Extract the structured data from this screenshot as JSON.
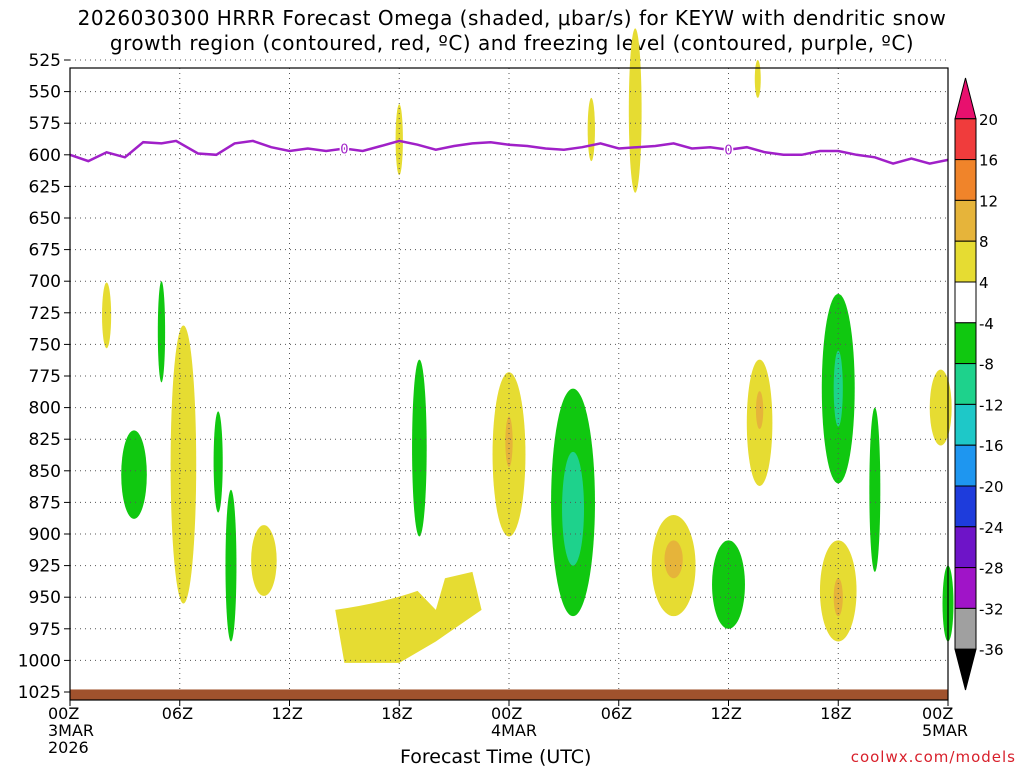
{
  "title": {
    "line1": "2026030300 HRRR Forecast Omega (shaded, μbar/s) for KEYW with dendritic snow",
    "line2": "growth region (contoured, red, ºC) and freezing level (contoured, purple, ºC)"
  },
  "chart_data": {
    "type": "heatmap",
    "x_axis": {
      "label": "Forecast Time (UTC)",
      "range_hours": [
        0,
        48
      ],
      "ticks": [
        {
          "hour": 0,
          "lines": [
            "00Z",
            "3MAR",
            "2026"
          ]
        },
        {
          "hour": 6,
          "lines": [
            "06Z"
          ]
        },
        {
          "hour": 12,
          "lines": [
            "12Z"
          ]
        },
        {
          "hour": 18,
          "lines": [
            "18Z"
          ]
        },
        {
          "hour": 24,
          "lines": [
            "00Z",
            "4MAR"
          ]
        },
        {
          "hour": 30,
          "lines": [
            "06Z"
          ]
        },
        {
          "hour": 36,
          "lines": [
            "12Z"
          ]
        },
        {
          "hour": 42,
          "lines": [
            "18Z"
          ]
        },
        {
          "hour": 48,
          "lines": [
            "00Z",
            "5MAR"
          ]
        }
      ]
    },
    "y_axis": {
      "units": "hPa",
      "range": [
        1025,
        525
      ],
      "ticks": [
        525,
        550,
        575,
        600,
        625,
        650,
        675,
        700,
        725,
        750,
        775,
        800,
        825,
        850,
        875,
        900,
        925,
        950,
        975,
        1000,
        1025
      ]
    },
    "grid": true,
    "colorbar": {
      "labels": [
        "20",
        "16",
        "12",
        "8",
        "4",
        "-4",
        "-8",
        "-12",
        "-16",
        "-20",
        "-24",
        "-28",
        "-32",
        "-36"
      ],
      "colors": [
        "#e8106e",
        "#f03c3c",
        "#f0842a",
        "#e6b43a",
        "#e6dc32",
        "#ffffff",
        "#10c810",
        "#1ed28c",
        "#1ec8c8",
        "#1e96f0",
        "#1e3cdc",
        "#6e14c8",
        "#a014c8",
        "#a0a0a0",
        "#000000"
      ]
    },
    "freezing_level": {
      "color": "#a020c8",
      "contour_label": "0",
      "points": [
        [
          0,
          600
        ],
        [
          1,
          605
        ],
        [
          2,
          598
        ],
        [
          3,
          602
        ],
        [
          4,
          590
        ],
        [
          5,
          591
        ],
        [
          5.8,
          589
        ],
        [
          7,
          599
        ],
        [
          8,
          600
        ],
        [
          9,
          591
        ],
        [
          10,
          589
        ],
        [
          11,
          594
        ],
        [
          12,
          597
        ],
        [
          13,
          595
        ],
        [
          14,
          597
        ],
        [
          15,
          595
        ],
        [
          16,
          597
        ],
        [
          17,
          593
        ],
        [
          18,
          589
        ],
        [
          19,
          592
        ],
        [
          20,
          596
        ],
        [
          21,
          593
        ],
        [
          22,
          591
        ],
        [
          23,
          590
        ],
        [
          24,
          592
        ],
        [
          25,
          593
        ],
        [
          26,
          595
        ],
        [
          27,
          596
        ],
        [
          28,
          594
        ],
        [
          29,
          591
        ],
        [
          30,
          595
        ],
        [
          31,
          594
        ],
        [
          32,
          593
        ],
        [
          33,
          591
        ],
        [
          34,
          595
        ],
        [
          35,
          594
        ],
        [
          36,
          596
        ],
        [
          37,
          594
        ],
        [
          38,
          598
        ],
        [
          39,
          600
        ],
        [
          40,
          600
        ],
        [
          41,
          597
        ],
        [
          42,
          597
        ],
        [
          43,
          600
        ],
        [
          44,
          602
        ],
        [
          45,
          607
        ],
        [
          46,
          603
        ],
        [
          47,
          607
        ],
        [
          48,
          604
        ]
      ]
    },
    "ground": {
      "color": "#a0522d",
      "pressure_top": 1023
    },
    "omega_regions": [
      {
        "t": 2.0,
        "p": 727,
        "dt": 0.25,
        "dp": 26,
        "level": "4 to 8"
      },
      {
        "t": 5.0,
        "p": 740,
        "dt": 0.2,
        "dp": 40,
        "level": "-4 to -8"
      },
      {
        "t": 3.5,
        "p": 853,
        "dt": 0.7,
        "dp": 35,
        "level": "-4 to -8"
      },
      {
        "t": 6.2,
        "p": 845,
        "dt": 0.7,
        "dp": 110,
        "level": "4 to 8"
      },
      {
        "t": 8.1,
        "p": 843,
        "dt": 0.25,
        "dp": 40,
        "level": "-4 to -8"
      },
      {
        "t": 8.8,
        "p": 925,
        "dt": 0.3,
        "dp": 60,
        "level": "-4 to -8"
      },
      {
        "t": 10.6,
        "p": 921,
        "dt": 0.7,
        "dp": 28,
        "level": "4 to 8"
      },
      {
        "t": 18.0,
        "p": 588,
        "dt": 0.2,
        "dp": 28,
        "level": "4 to 8"
      },
      {
        "t": 19.1,
        "p": 832,
        "dt": 0.4,
        "dp": 70,
        "level": "-4 to -8"
      },
      {
        "t": 24.0,
        "p": 837,
        "dt": 0.9,
        "dp": 65,
        "level": "4 to 8"
      },
      {
        "t": 24.0,
        "p": 827,
        "dt": 0.2,
        "dp": 20,
        "level": "8 to 12"
      },
      {
        "t": 27.5,
        "p": 875,
        "dt": 1.2,
        "dp": 90,
        "level": "-4 to -8"
      },
      {
        "t": 27.5,
        "p": 880,
        "dt": 0.6,
        "dp": 45,
        "level": "-8 to -12"
      },
      {
        "t": 28.5,
        "p": 580,
        "dt": 0.2,
        "dp": 25,
        "level": "4 to 8"
      },
      {
        "t": 30.9,
        "p": 565,
        "dt": 0.35,
        "dp": 65,
        "level": "4 to 8"
      },
      {
        "t": 33.0,
        "p": 925,
        "dt": 1.2,
        "dp": 40,
        "level": "4 to 8"
      },
      {
        "t": 33.0,
        "p": 920,
        "dt": 0.5,
        "dp": 15,
        "level": "8 to 12"
      },
      {
        "t": 36.0,
        "p": 940,
        "dt": 0.9,
        "dp": 35,
        "level": "-4 to -8"
      },
      {
        "t": 37.6,
        "p": 540,
        "dt": 0.15,
        "dp": 15,
        "level": "4 to 8"
      },
      {
        "t": 37.7,
        "p": 812,
        "dt": 0.7,
        "dp": 50,
        "level": "4 to 8"
      },
      {
        "t": 37.7,
        "p": 802,
        "dt": 0.2,
        "dp": 15,
        "level": "8 to 12"
      },
      {
        "t": 42.0,
        "p": 785,
        "dt": 0.9,
        "dp": 75,
        "level": "-4 to -8"
      },
      {
        "t": 42.0,
        "p": 785,
        "dt": 0.25,
        "dp": 30,
        "level": "-8 to -12"
      },
      {
        "t": 42.0,
        "p": 945,
        "dt": 1.0,
        "dp": 40,
        "level": "4 to 8"
      },
      {
        "t": 42.0,
        "p": 950,
        "dt": 0.25,
        "dp": 15,
        "level": "8 to 12"
      },
      {
        "t": 44.0,
        "p": 865,
        "dt": 0.3,
        "dp": 65,
        "level": "-4 to -8"
      },
      {
        "t": 47.6,
        "p": 800,
        "dt": 0.6,
        "dp": 30,
        "level": "4 to 8"
      },
      {
        "t": 48.0,
        "p": 955,
        "dt": 0.3,
        "dp": 30,
        "level": "-4 to -8"
      }
    ]
  },
  "footer": {
    "credit": "coolwx.com/models"
  }
}
